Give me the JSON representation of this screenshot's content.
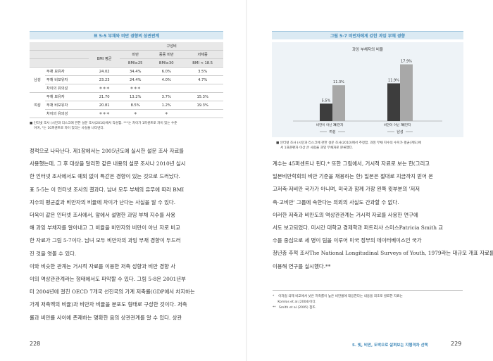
{
  "left_page": {
    "table_caption": "표 5-5  부채와 비만 경향의 상관관계",
    "table": {
      "group_header": "구성비",
      "col_bmi_mean": "BMI 평균",
      "cols": [
        "비만",
        "중증 비만",
        "저체중"
      ],
      "sub_cols": [
        "BMI≥25",
        "BMI≥30",
        "BMI < 18.5"
      ],
      "rows": [
        {
          "gender": "남성",
          "label": "부채 보유자",
          "bmi": "24.02",
          "c1": "34.4%",
          "c2": "6.0%",
          "c3": "3.5%"
        },
        {
          "gender": "",
          "label": "부채 비보유자",
          "bmi": "23.23",
          "c1": "24.4%",
          "c2": "4.0%",
          "c3": "4.7%"
        },
        {
          "gender": "",
          "label": "차이의 유의성",
          "bmi": "＊＊＊",
          "c1": "＊＊＊",
          "c2": "",
          "c3": ""
        },
        {
          "gender": "여성",
          "label": "부채 보유자",
          "bmi": "21.70",
          "c1": "13.2%",
          "c2": "3.7%",
          "c3": "15.3%"
        },
        {
          "gender": "",
          "label": "부채 비보유자",
          "bmi": "20.81",
          "c1": "8.5%",
          "c2": "1.2%",
          "c3": "19.3%"
        },
        {
          "gender": "",
          "label": "차이의 유의성",
          "bmi": "＊＊＊",
          "c1": "＊",
          "c2": "＊",
          "c3": ""
        }
      ]
    },
    "note_line1": "■  인터넷 조사 (시민과 리스크에 관한 설문 조사(2010)에서 작성함. ***는 차이가 1퍼센트로 차이 있는 수준",
    "note_line2": "이며, *는 10퍼센트로 차이 있다는 사실을 나타낸다.",
    "paragraphs": [
      "정적으로 나타난다. 제1장에서는 2005년도에 실시한 설문 조사 자료를",
      "사용했는데, 그 후 대상을 달리한 같은 내용의 설문 조사나 2010년 실시",
      "한 인터넷 조사에서도 예외 없이 특갇은 경향이 있는 것으로 드러났다.",
      "표 5-5는 이 인터넷 조사의 결과다. 남녀 모두 부채의 유무에 따라 BMI",
      "지수의 평균값과 비만자의 비율에 차이가 난다는 사실을 알 수 있다.",
      "  더욱이 같은 인터넷 조사에서, 앞에서 설명한 과잉 부채 지수를 사용",
      "해 과잉 부채자를 알아내고 그 비율을 비만자와 비만이 아닌 자로 비교",
      "한 자료가 그림 5-7이다. 남녀 모두 비만자의 과잉 부채 경향이 두드러",
      "진 것을 엿볼 수 있다.",
      "  이와 비슷한 관계는 거시적 자료를 이용한 저축 성향과 비만 경향 사",
      "이의 역상관관계라는 형태에서도 파악할 수 있다. 그림 5-8은 2001년부",
      "터 2004년에 걸친 OECD 7개국 선진국의 가계 저축률(GDP에서 차지하는",
      "가계 저축액의 비율)과 비만자 비율을 분포도 형태로 구성한 것이다. 저축",
      "률과 비만률 사이에 존재하는 명확한 음의 상관관계를 알 수 있다. 상관"
    ],
    "page_number": "228"
  },
  "right_page": {
    "figure_caption": "그림 5-7  비만자에게 강한 과잉 부채 경향",
    "chart_data": {
      "type": "bar",
      "title": "과잉 부채자의 비율",
      "categories": [
        "비만이 아닌 자",
        "비만자",
        "비만이 아닌 자",
        "비만자"
      ],
      "groups": [
        "여성",
        "남성"
      ],
      "values": [
        5.5,
        11.3,
        11.9,
        17.9
      ],
      "value_labels": [
        "5.5%",
        "11.3%",
        "11.9%",
        "17.9%"
      ],
      "colors": [
        "#3d3d3d",
        "#a8a8a8",
        "#3d3d3d",
        "#a8a8a8"
      ],
      "ylim": [
        0,
        20
      ],
      "grid": false
    },
    "fig_note_line1": "■  인터넷 조사 (시민과 리스크에 관한 설문 조사(2010)에서 추정함. 과잉 부채 지수의 수치가 평균(계도)에",
    "fig_note_line2": "서 1표준편차 이상 큰 사람을 과잉 부채자로 분류했다.",
    "paragraphs": [
      "계수는 45퍼센트나 된다.* 또한 그림에서, 거시적 자료로 보는 한(그리고",
      "일본비만학회의 비만 기준을 채용하는 한) 일본은 절대로 지금까지 믿어 온",
      "고저축·저비만 국가가 아니며, 미국과 함께 가장 왼쪽 윗부분의 '저저",
      "축·고비만' 그룹에 속한다는 의외의 사실도 간과할 수 없다.",
      "  이러한 저축과 비만도의 역상관관계는 거시적 자료를 사용한 연구에",
      "서도 보고되었다. 미시간 대학교 경제학과 퍼트리샤 스미스Patricia Smith 교",
      "수를 중심으로 세 명이 팀을 이루어 미국 정부의 데이터베이스인 국가",
      "청년층 추적 조사The National Longitudinal Surveys of Youth, 1979라는 대규모 개표 자료를",
      "이용해 연구를 실시했다.**"
    ],
    "footnotes": [
      "*    이처럼 국제 비교에서 낮은 저축률이 높은 비만율에 대응한다는 내용을 최초로 발표한 자료는",
      "     Komlos et al.(2004)이다.",
      "**   Smith et al.(2005) 참조."
    ],
    "running_head": "5. 빚, 비만, 도박으로 살펴보는 지행격차 선택",
    "page_number": "229"
  }
}
